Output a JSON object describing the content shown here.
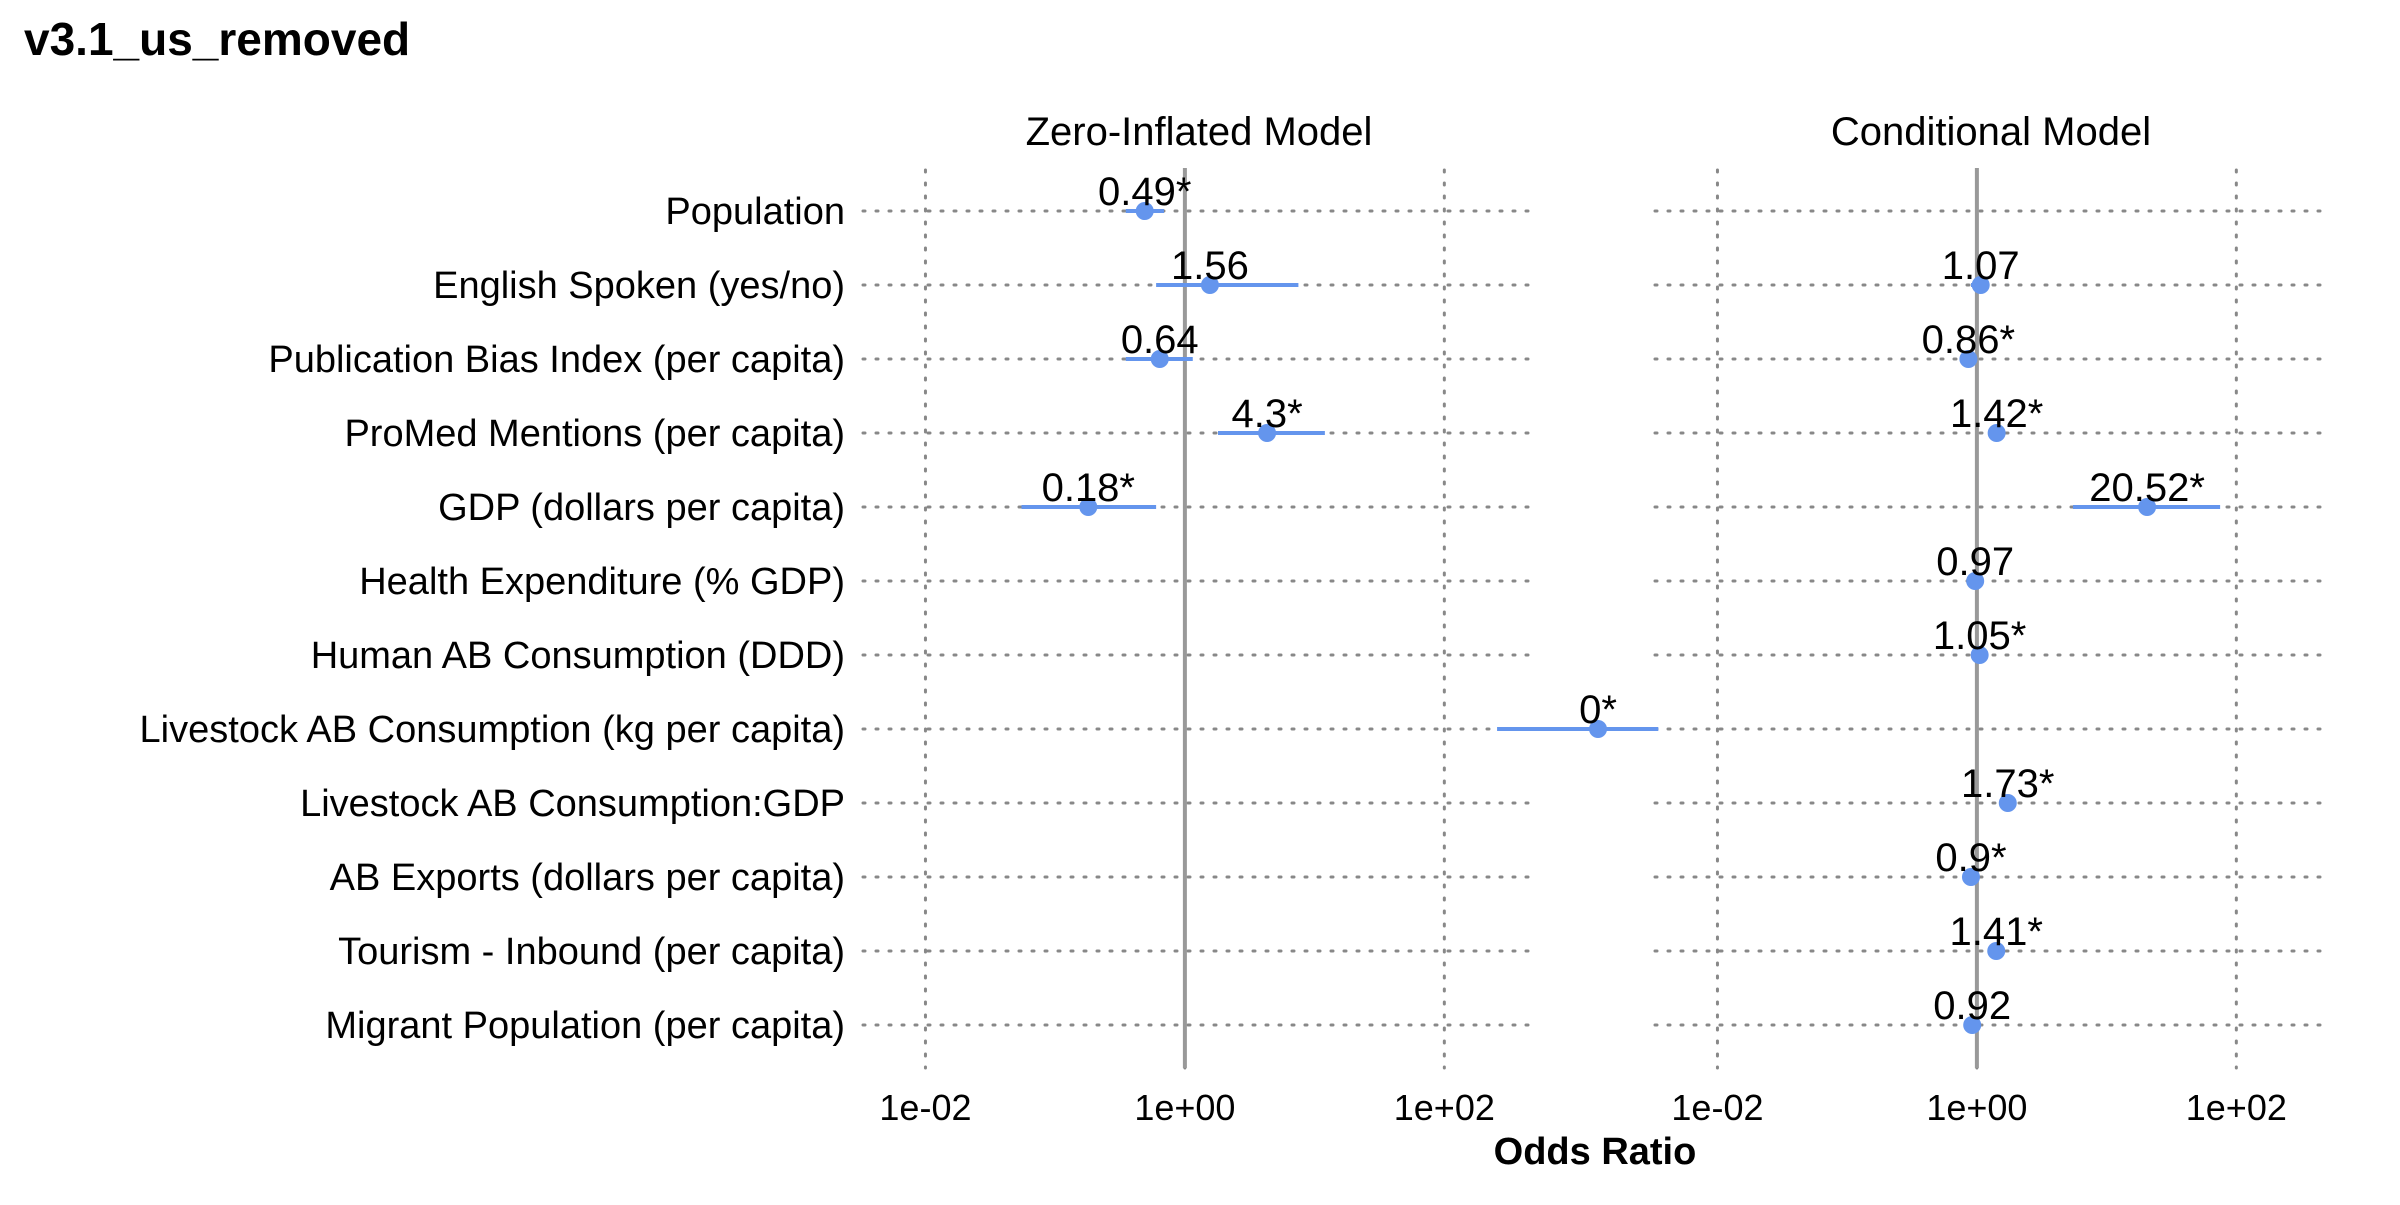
{
  "page_title": "v3.1_us_removed",
  "chart_data": {
    "type": "forest",
    "title": "v3.1_us_removed",
    "xlabel": "Odds Ratio",
    "x_scale": "log10",
    "x_ticks": [
      0.01,
      1,
      100
    ],
    "x_tick_labels": [
      "1e-02",
      "1e+00",
      "1e+02"
    ],
    "reference_line": 1,
    "grid": "dotted",
    "series_color": "#6495ED",
    "ref_color": "#999999",
    "grid_color": "#888888",
    "categories": [
      "Population",
      "English Spoken (yes/no)",
      "Publication Bias Index (per capita)",
      "ProMed Mentions (per capita)",
      "GDP (dollars per capita)",
      "Health Expenditure (% GDP)",
      "Human AB Consumption (DDD)",
      "Livestock AB Consumption (kg per capita)",
      "Livestock AB Consumption:GDP",
      "AB Exports (dollars per capita)",
      "Tourism - Inbound (per capita)",
      "Migrant Population (per capita)"
    ],
    "panels": [
      {
        "name": "Zero-Inflated Model",
        "xlim": [
          0.0033,
          500
        ],
        "estimates": [
          {
            "variable": "Population",
            "or": 0.49,
            "lo": 0.35,
            "hi": 0.69,
            "label": "0.49*"
          },
          {
            "variable": "English Spoken (yes/no)",
            "or": 1.56,
            "lo": 0.6,
            "hi": 7.5,
            "label": "1.56"
          },
          {
            "variable": "Publication Bias Index (per capita)",
            "or": 0.64,
            "lo": 0.35,
            "hi": 1.15,
            "label": "0.64"
          },
          {
            "variable": "ProMed Mentions (per capita)",
            "or": 4.3,
            "lo": 1.8,
            "hi": 12.0,
            "label": "4.3*"
          },
          {
            "variable": "GDP (dollars per capita)",
            "or": 0.18,
            "lo": 0.055,
            "hi": 0.6,
            "label": "0.18*"
          }
        ]
      },
      {
        "name": "Conditional Model",
        "xlim": [
          0.0033,
          500
        ],
        "estimates": [
          {
            "variable": "Population",
            "or": null,
            "lo": null,
            "hi": null,
            "label": ""
          },
          {
            "variable": "English Spoken (yes/no)",
            "or": 1.07,
            "lo": 0.9,
            "hi": 1.25,
            "label": "1.07"
          },
          {
            "variable": "Publication Bias Index (per capita)",
            "or": 0.86,
            "lo": 0.79,
            "hi": 0.94,
            "label": "0.86*"
          },
          {
            "variable": "ProMed Mentions (per capita)",
            "or": 1.42,
            "lo": 1.25,
            "hi": 1.6,
            "label": "1.42*"
          },
          {
            "variable": "GDP (dollars per capita)",
            "or": 20.52,
            "lo": 5.5,
            "hi": 75,
            "label": "20.52*"
          },
          {
            "variable": "Health Expenditure (% GDP)",
            "or": 0.97,
            "lo": 0.9,
            "hi": 1.05,
            "label": "0.97"
          },
          {
            "variable": "Human AB Consumption (DDD)",
            "or": 1.05,
            "lo": 1.02,
            "hi": 1.08,
            "label": "1.05*"
          },
          {
            "variable": "Livestock AB Consumption (kg per capita)",
            "or": 0.0012,
            "lo": 0.0002,
            "hi": 0.0035,
            "label": "0*"
          },
          {
            "variable": "Livestock AB Consumption:GDP",
            "or": 1.73,
            "lo": 1.5,
            "hi": 2.0,
            "label": "1.73*"
          },
          {
            "variable": "AB Exports (dollars per capita)",
            "or": 0.9,
            "lo": 0.85,
            "hi": 0.95,
            "label": "0.9*"
          },
          {
            "variable": "Tourism - Inbound (per capita)",
            "or": 1.41,
            "lo": 1.25,
            "hi": 1.6,
            "label": "1.41*"
          },
          {
            "variable": "Migrant Population (per capita)",
            "or": 0.92,
            "lo": 0.85,
            "hi": 0.99,
            "label": "0.92"
          }
        ]
      }
    ]
  }
}
